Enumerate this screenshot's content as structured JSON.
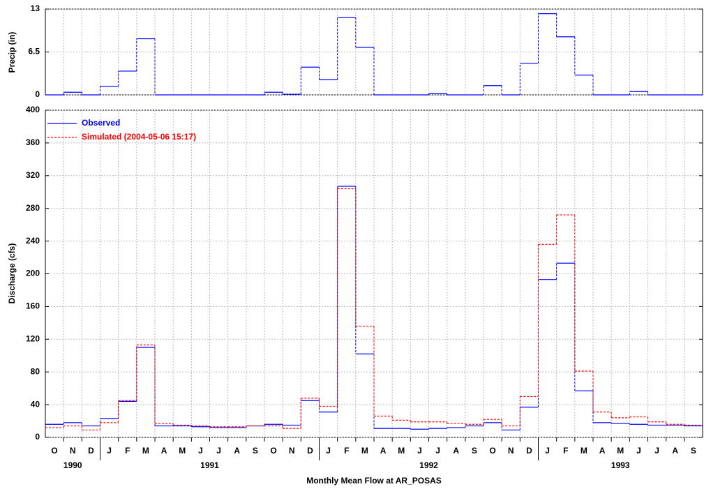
{
  "chart_data": [
    {
      "type": "step",
      "ylabel": "Precip (in)",
      "ylim": [
        0,
        13
      ],
      "yticks": [
        0,
        6.5,
        13
      ],
      "grid": true,
      "color": "#0000ff",
      "values": [
        0,
        0.4,
        0,
        1.3,
        3.6,
        8.5,
        0,
        0,
        0,
        0,
        0,
        0,
        0.4,
        0.1,
        4.2,
        2.3,
        11.7,
        7.2,
        0,
        0,
        0,
        0.2,
        0,
        0,
        1.4,
        0,
        4.8,
        12.3,
        8.8,
        3.0,
        0,
        0,
        0.5,
        0,
        0,
        0
      ]
    },
    {
      "type": "step",
      "ylabel": "Discharge (cfs)",
      "xlabel": "Monthly Mean Flow at AR_POSAS",
      "categories": [
        "O",
        "N",
        "D",
        "J",
        "F",
        "M",
        "A",
        "M",
        "J",
        "J",
        "A",
        "S",
        "O",
        "N",
        "D",
        "J",
        "F",
        "M",
        "A",
        "M",
        "J",
        "J",
        "A",
        "S",
        "O",
        "N",
        "D",
        "J",
        "F",
        "M",
        "A",
        "M",
        "J",
        "J",
        "A",
        "S"
      ],
      "year_labels": [
        "1990",
        "1991",
        "1992",
        "1993"
      ],
      "ylim": [
        0,
        400
      ],
      "yticks": [
        0,
        40,
        80,
        120,
        160,
        200,
        240,
        280,
        320,
        360,
        400
      ],
      "grid": true,
      "legend": "upper left",
      "series": [
        {
          "name": "Observed",
          "color": "#0000ff",
          "linestyle": "solid",
          "values": [
            16,
            18,
            14,
            23,
            44,
            110,
            14,
            14,
            13,
            12,
            12,
            14,
            16,
            15,
            45,
            31,
            307,
            102,
            11,
            11,
            10,
            11,
            12,
            14,
            18,
            9,
            37,
            193,
            213,
            57,
            18,
            17,
            16,
            15,
            15,
            14
          ]
        },
        {
          "name": "Simulated (2004-05-06 15:17)",
          "color": "#ff0000",
          "linestyle": "dashed",
          "values": [
            12,
            14,
            9,
            18,
            45,
            113,
            17,
            15,
            14,
            13,
            13,
            14,
            14,
            11,
            48,
            38,
            304,
            136,
            26,
            21,
            19,
            19,
            17,
            16,
            22,
            14,
            50,
            236,
            272,
            81,
            31,
            24,
            25,
            19,
            16,
            15
          ]
        }
      ]
    }
  ]
}
